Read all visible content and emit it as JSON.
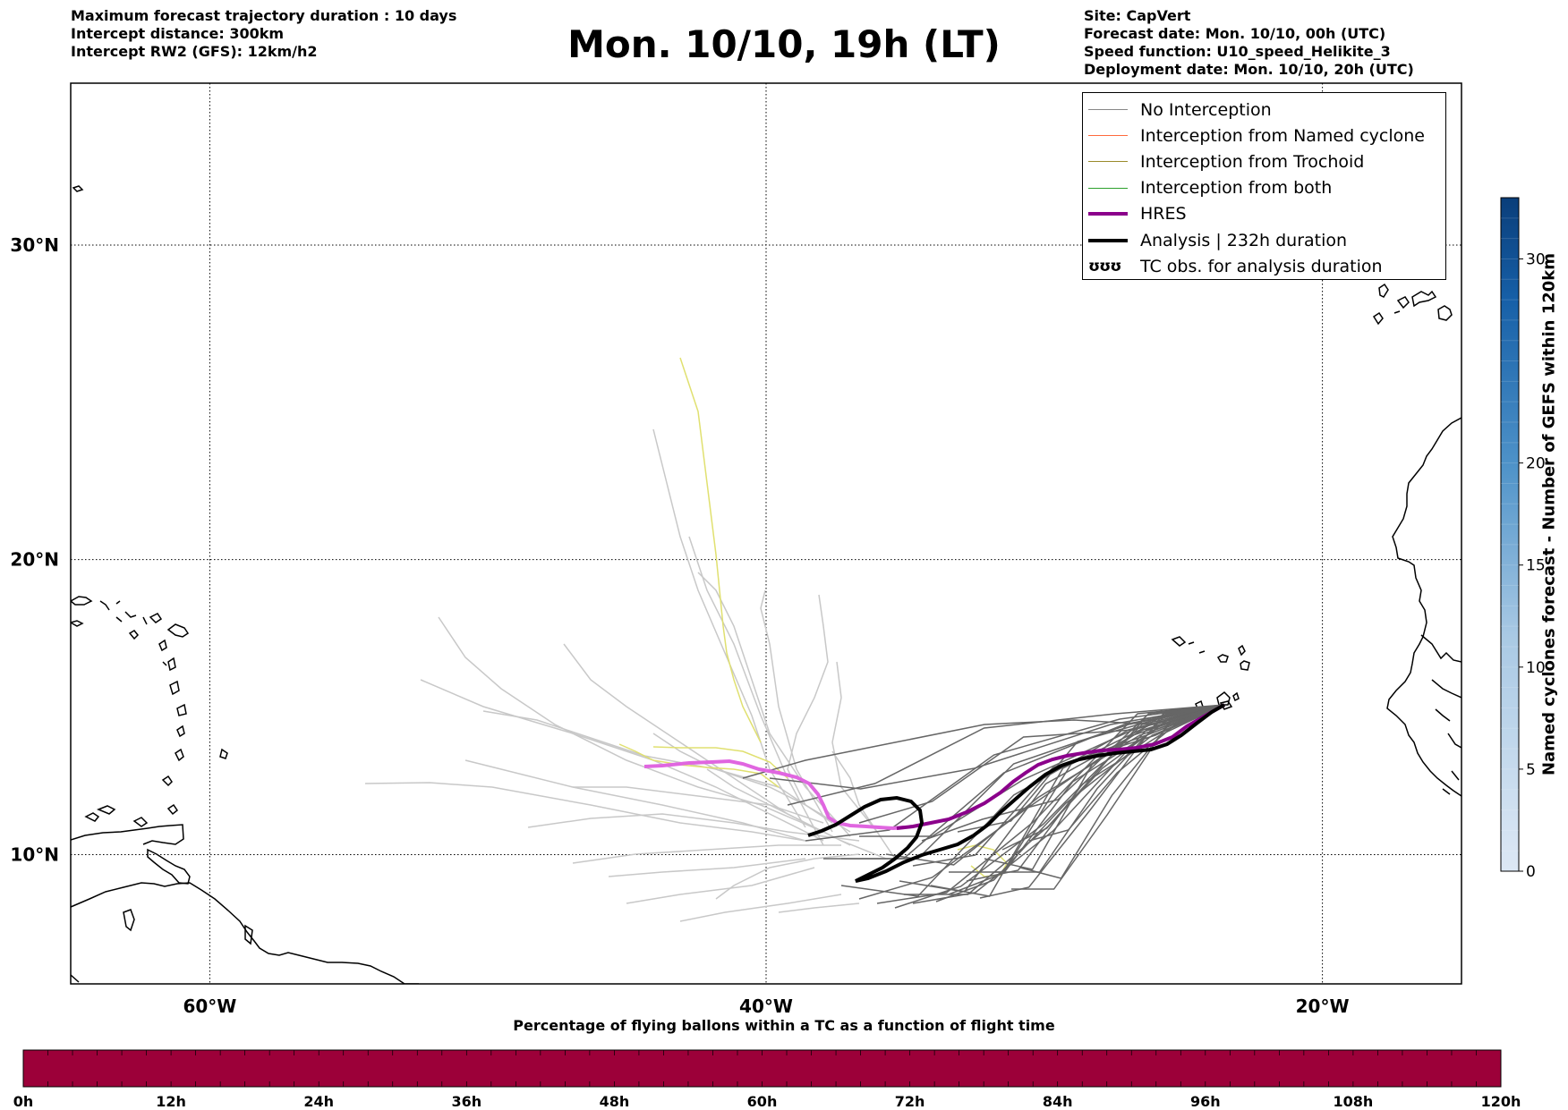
{
  "header": {
    "left_lines": [
      "Maximum forecast trajectory duration : 10 days",
      "Intercept distance: 300km",
      "Intercept RW2 (GFS):  12km/h2"
    ],
    "title": "Mon. 10/10, 19h (LT)",
    "right_lines": [
      "Site: CapVert",
      "Forecast date: Mon. 10/10, 00h (UTC)",
      "Speed function: U10_speed_Helikite_3",
      "Deployment date: Mon. 10/10, 20h (UTC)"
    ]
  },
  "map": {
    "lon_range": [
      -65,
      -15
    ],
    "lat_range": [
      5.5,
      34.8
    ],
    "lon_ticks": [
      {
        "lon": -60,
        "label": "60°W"
      },
      {
        "lon": -40,
        "label": "40°W"
      },
      {
        "lon": -20,
        "label": "20°W"
      }
    ],
    "lat_ticks": [
      {
        "lat": 30,
        "label": "30°N"
      },
      {
        "lat": 20,
        "label": "20°N"
      },
      {
        "lat": 10,
        "label": "10°N"
      }
    ],
    "grid": "dotted",
    "colors": {
      "no_interception": "#888888",
      "named_cyclone": "#ff6a3d",
      "trochoid": "#9a8a2a",
      "both": "#2ca02c",
      "hres": "#8b008b",
      "hres_pre": "#e066e0",
      "analysis": "#000000",
      "light_ensemble": "#c8c8c8",
      "dark_ensemble": "#666666",
      "yellow_ensemble": "#e0e070"
    }
  },
  "legend": {
    "placement": "top-right",
    "items": [
      {
        "label": "No Interception",
        "color": "#888888",
        "width": 1.5
      },
      {
        "label": "Interception from Named cyclone",
        "color": "#ff6a3d",
        "width": 1.5
      },
      {
        "label": "Interception from Trochoid",
        "color": "#9a8a2a",
        "width": 1.5
      },
      {
        "label": "Interception from both",
        "color": "#2ca02c",
        "width": 1.5
      },
      {
        "label": "HRES",
        "color": "#8b008b",
        "width": 4
      },
      {
        "label": "Analysis | 232h duration",
        "color": "#000000",
        "width": 4
      }
    ],
    "symbol_item": {
      "symbol": "ʊʊʊ",
      "label": "TC obs. for analysis duration"
    }
  },
  "right_colorbar": {
    "title": "Named cyclones forecast - Number of GEFS within 120km",
    "min": 0,
    "max": 33,
    "ticks": [
      {
        "value": 0,
        "label": "0"
      },
      {
        "value": 5,
        "label": "5"
      },
      {
        "value": 10,
        "label": "10"
      },
      {
        "value": 15,
        "label": "15"
      },
      {
        "value": 20,
        "label": "20"
      },
      {
        "value": 30,
        "label": "30"
      }
    ],
    "color_low": "#dde8f5",
    "color_high": "#0a3e7a"
  },
  "bottom_colorbar": {
    "title": "Percentage of flying ballons within a TC as a function of flight time",
    "fill_color": "#9c0039",
    "ticks": [
      "0h",
      "12h",
      "24h",
      "36h",
      "48h",
      "60h",
      "72h",
      "84h",
      "96h",
      "108h",
      "120h"
    ]
  }
}
